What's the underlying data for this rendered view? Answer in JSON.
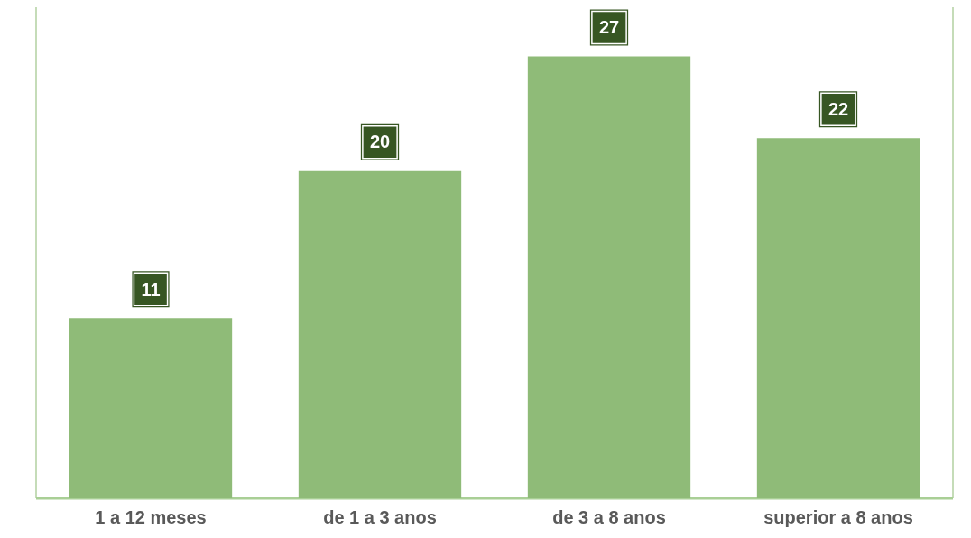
{
  "chart_data": {
    "type": "bar",
    "categories": [
      "1 a 12 meses",
      "de 1 a 3 anos",
      "de 3 a 8 anos",
      "superior a 8 anos"
    ],
    "values": [
      11,
      20,
      27,
      22
    ],
    "color": "#8fbb78",
    "ylim": [
      0,
      30
    ],
    "data_labels": true,
    "tick_labels": "x"
  }
}
